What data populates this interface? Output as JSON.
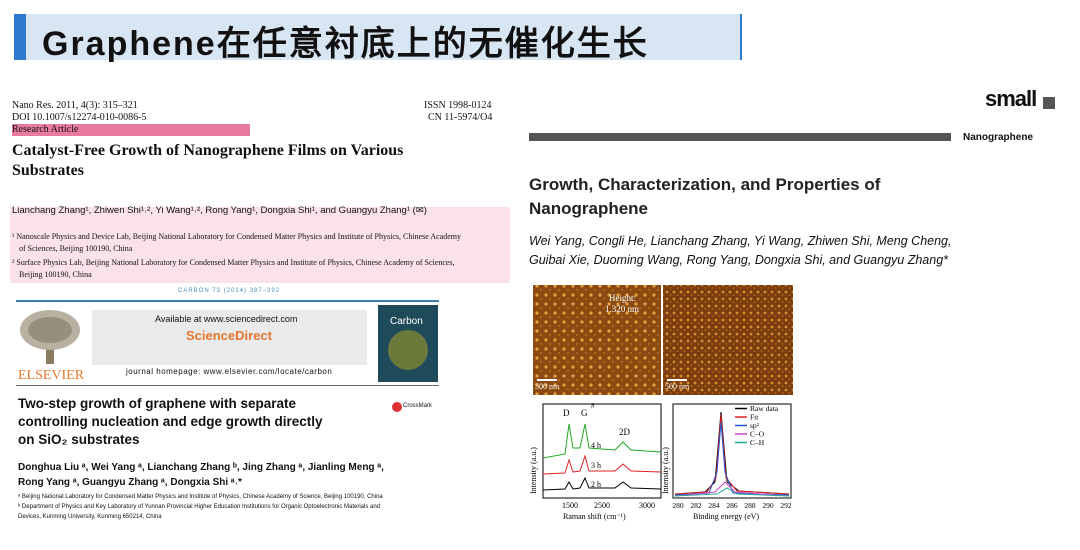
{
  "header": {
    "title": "Graphene在任意衬底上的无催化生长"
  },
  "paper1": {
    "journal_line": "Nano Res. 2011, 4(3): 315–321",
    "doi": "DOI 10.1007/s12274-010-0086-5",
    "issn": "ISSN 1998-0124",
    "cn": "CN 11-5974/O4",
    "article_type": "Research Article",
    "title_lines": [
      "Catalyst-Free Growth of Nanographene Films on Various",
      "Substrates"
    ],
    "authors": "Lianchang Zhang¹, Zhiwen Shi¹˒², Yi Wang¹˒², Rong Yang¹, Dongxia Shi¹, and Guangyu Zhang¹ (✉)",
    "affiliation_lines": [
      "¹ Nanoscale Physics and Device Lab, Beijing National Laboratory for Condensed Matter Physics and Institute of Physics, Chinese Academy",
      "of Sciences, Beijing 100190, China",
      "² Surface Physics Lab, Beijing National Laboratory for Condensed Matter Physics and Institute of Physics, Chinese Academy of Sciences,",
      "Beijing 100190, China"
    ]
  },
  "paper2": {
    "citation": "CARBON 73 (2014) 387–392",
    "available": "Available at www.sciencedirect.com",
    "brand": "ScienceDirect",
    "homepage": "journal homepage: www.elsevier.com/locate/carbon",
    "publisher": "ELSEVIER",
    "cover": "Carbon",
    "crossmark": "CrossMark",
    "title_lines": [
      "Two-step growth of graphene with separate",
      "controlling nucleation and edge growth directly",
      "on SiO₂ substrates"
    ],
    "author_lines": [
      "Donghua Liu ᵃ, Wei Yang ᵃ, Lianchang Zhang ᵇ, Jing Zhang ᵃ, Jianling Meng ᵃ,",
      "Rong Yang ᵃ, Guangyu Zhang ᵃ, Dongxia Shi ᵃ˒*"
    ],
    "affiliation_lines": [
      "ᵃ Beijing National Laboratory for Condensed Matter Physics and Institute of Physics, Chinese Academy of Science, Beijing 100190, China",
      "ᵇ Department of Physics and Key Laboratory of Yunnan Provincial Higher Education Institutions for Organic Optoelectronic Materials and",
      "Devices, Kunming University, Kunming 650214, China"
    ]
  },
  "paper3": {
    "journal": "small",
    "section": "Nanographene",
    "title_lines": [
      "Growth, Characterization, and Properties of",
      "Nanographene"
    ],
    "author_lines": [
      "Wei Yang, Congli He, Lianchang Zhang, Yi Wang, Zhiwen Shi, Meng Cheng,",
      "Guibai Xie, Duoming Wang, Rong Yang, Dongxia Shi, and Guangyu Zhang*"
    ],
    "figure": {
      "afm_height_lines": [
        "Height:",
        "1.320 nm"
      ],
      "scale_bars": [
        "500 nm",
        "500 nm"
      ],
      "raman": {
        "peaks": [
          "D",
          "G",
          "2D"
        ],
        "marker": "#",
        "times": [
          "4 h",
          "3 h",
          "2 h"
        ],
        "xticks": [
          "1500",
          "2500",
          "3000"
        ],
        "xlabel": "Raman shift (cm⁻¹)",
        "ylabel": "Intensity (a.u.)"
      },
      "xps": {
        "legend": [
          "Raw data",
          "Fit",
          "sp²",
          "C–O",
          "C–H"
        ],
        "xticks": [
          "280",
          "282",
          "284",
          "286",
          "288",
          "290",
          "292"
        ],
        "xlabel": "Binding energy (eV)",
        "ylabel": "Intensity (a.u.)"
      }
    }
  }
}
